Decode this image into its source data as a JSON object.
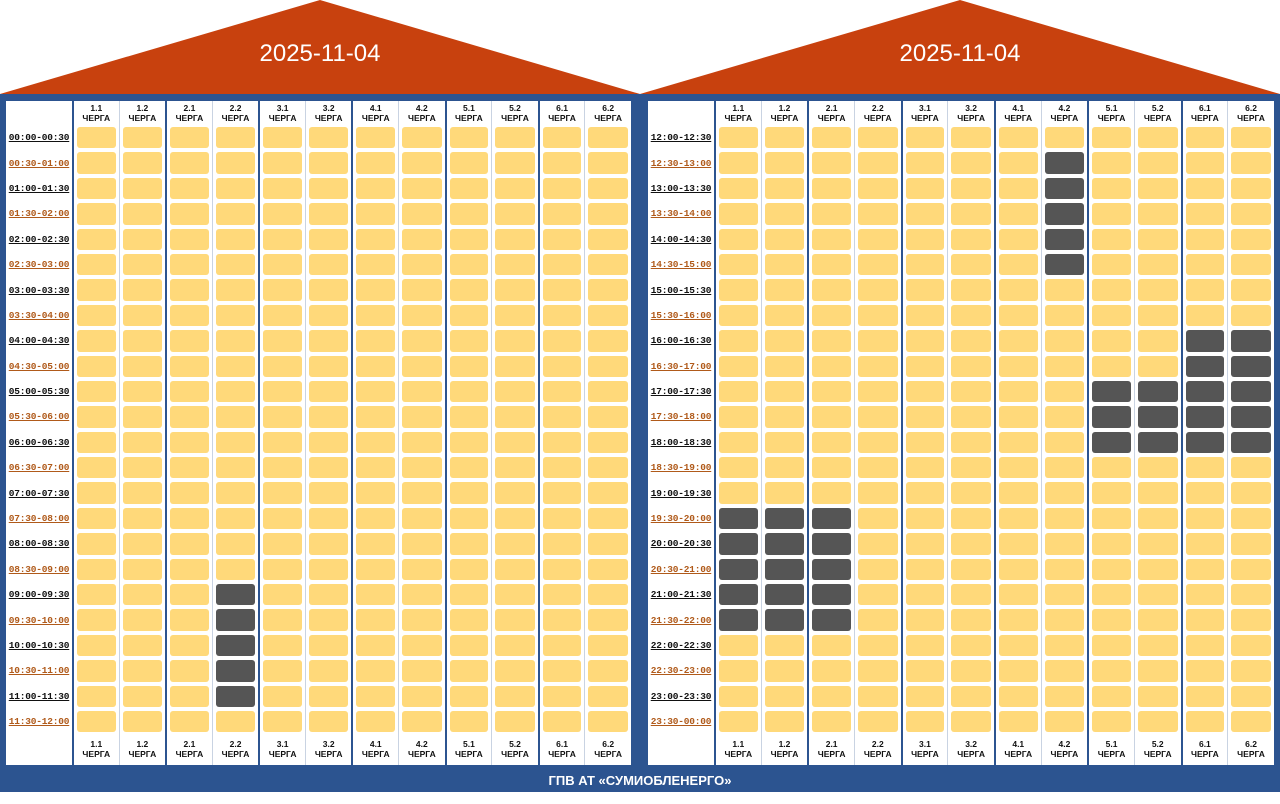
{
  "colors": {
    "roof": "#c8410e",
    "frame": "#2c5490",
    "free": "#ffd97a",
    "off": "#555555"
  },
  "groups": [
    {
      "num": "1.1",
      "word": "ЧЕРГА"
    },
    {
      "num": "1.2",
      "word": "ЧЕРГА"
    },
    {
      "num": "2.1",
      "word": "ЧЕРГА"
    },
    {
      "num": "2.2",
      "word": "ЧЕРГА"
    },
    {
      "num": "3.1",
      "word": "ЧЕРГА"
    },
    {
      "num": "3.2",
      "word": "ЧЕРГА"
    },
    {
      "num": "4.1",
      "word": "ЧЕРГА"
    },
    {
      "num": "4.2",
      "word": "ЧЕРГА"
    },
    {
      "num": "5.1",
      "word": "ЧЕРГА"
    },
    {
      "num": "5.2",
      "word": "ЧЕРГА"
    },
    {
      "num": "6.1",
      "word": "ЧЕРГА"
    },
    {
      "num": "6.2",
      "word": "ЧЕРГА"
    }
  ],
  "panels": [
    {
      "date": "2025-11-04",
      "times": [
        "00:00-00:30",
        "00:30-01:00",
        "01:00-01:30",
        "01:30-02:00",
        "02:00-02:30",
        "02:30-03:00",
        "03:00-03:30",
        "03:30-04:00",
        "04:00-04:30",
        "04:30-05:00",
        "05:00-05:30",
        "05:30-06:00",
        "06:00-06:30",
        "06:30-07:00",
        "07:00-07:30",
        "07:30-08:00",
        "08:00-08:30",
        "08:30-09:00",
        "09:00-09:30",
        "09:30-10:00",
        "10:00-10:30",
        "10:30-11:00",
        "11:00-11:30",
        "11:30-12:00"
      ],
      "outages": [
        {
          "group": 3,
          "rows": [
            18,
            19,
            20,
            21,
            22
          ]
        }
      ]
    },
    {
      "date": "2025-11-04",
      "times": [
        "12:00-12:30",
        "12:30-13:00",
        "13:00-13:30",
        "13:30-14:00",
        "14:00-14:30",
        "14:30-15:00",
        "15:00-15:30",
        "15:30-16:00",
        "16:00-16:30",
        "16:30-17:00",
        "17:00-17:30",
        "17:30-18:00",
        "18:00-18:30",
        "18:30-19:00",
        "19:00-19:30",
        "19:30-20:00",
        "20:00-20:30",
        "20:30-21:00",
        "21:00-21:30",
        "21:30-22:00",
        "22:00-22:30",
        "22:30-23:00",
        "23:00-23:30",
        "23:30-00:00"
      ],
      "outages": [
        {
          "group": 0,
          "rows": [
            15,
            16,
            17,
            18,
            19
          ]
        },
        {
          "group": 1,
          "rows": [
            15,
            16,
            17,
            18,
            19
          ]
        },
        {
          "group": 2,
          "rows": [
            15,
            16,
            17,
            18,
            19
          ]
        },
        {
          "group": 7,
          "rows": [
            1,
            2,
            3,
            4,
            5
          ]
        },
        {
          "group": 8,
          "rows": [
            10,
            11,
            12
          ]
        },
        {
          "group": 9,
          "rows": [
            10,
            11,
            12
          ]
        },
        {
          "group": 10,
          "rows": [
            8,
            9,
            10,
            11,
            12
          ]
        },
        {
          "group": 11,
          "rows": [
            8,
            9,
            10,
            11,
            12
          ]
        }
      ]
    }
  ],
  "footer": {
    "text": "ГПВ АТ «СУМИОБЛЕНЕРГО»"
  }
}
